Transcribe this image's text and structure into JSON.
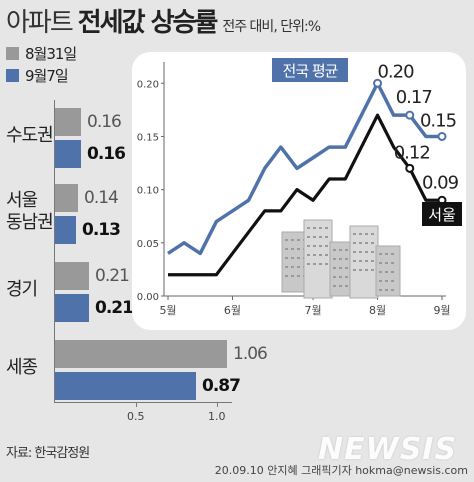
{
  "title": {
    "light": "아파트",
    "bold": "전세값 상승률",
    "sub": "전주 대비, 단위:%"
  },
  "legend": [
    {
      "label": "8월31일",
      "color": "#999999"
    },
    {
      "label": "9월7일",
      "color": "#4f72aa"
    }
  ],
  "source": "자료: 한국감정원",
  "logo": "NEWSIS",
  "credit": "20.09.10 안지혜 그래픽기자 hokma@newsis.com",
  "chart_data": [
    {
      "type": "bar",
      "orientation": "horizontal",
      "categories": [
        "수도권",
        "서울 동남권",
        "경기",
        "세종"
      ],
      "series": [
        {
          "name": "8월31일",
          "values": [
            0.16,
            0.14,
            0.21,
            1.06
          ]
        },
        {
          "name": "9월7일",
          "values": [
            0.16,
            0.13,
            0.21,
            0.87
          ]
        }
      ],
      "xlim": [
        0,
        1.06
      ],
      "x_ticks": [
        "0.5",
        "1.0"
      ],
      "value_labels": {
        "8월31일": [
          "0.16",
          "0.14",
          "0.21",
          "1.06"
        ],
        "9월7일": [
          "0.16",
          "0.13",
          "0.21",
          "0.87"
        ]
      }
    },
    {
      "type": "line",
      "x_ticks": [
        "5월",
        "6월",
        "7월",
        "8월",
        "9월"
      ],
      "y_ticks": [
        "0.00",
        "0.05",
        "0.10",
        "0.15",
        "0.20"
      ],
      "ylim": [
        0,
        0.22
      ],
      "series": [
        {
          "name": "전국 평균",
          "color": "#4f72aa",
          "values": [
            0.04,
            0.05,
            0.04,
            0.07,
            0.08,
            0.09,
            0.12,
            0.14,
            0.12,
            0.13,
            0.14,
            0.14,
            0.17,
            0.2,
            0.17,
            0.17,
            0.15,
            0.15
          ]
        },
        {
          "name": "서울",
          "color": "#111111",
          "values": [
            0.02,
            0.02,
            0.02,
            0.02,
            0.04,
            0.06,
            0.08,
            0.08,
            0.1,
            0.09,
            0.11,
            0.11,
            0.14,
            0.17,
            0.14,
            0.12,
            0.09,
            0.09
          ]
        }
      ],
      "annotations": [
        {
          "series": "전국 평균",
          "index": 13,
          "text": "0.20"
        },
        {
          "series": "전국 평균",
          "index": 15,
          "text": "0.17"
        },
        {
          "series": "전국 평균",
          "index": 17,
          "text": "0.15"
        },
        {
          "series": "서울",
          "index": 15,
          "text": "0.12"
        },
        {
          "series": "서울",
          "index": 17,
          "text": "0.09"
        }
      ]
    }
  ]
}
